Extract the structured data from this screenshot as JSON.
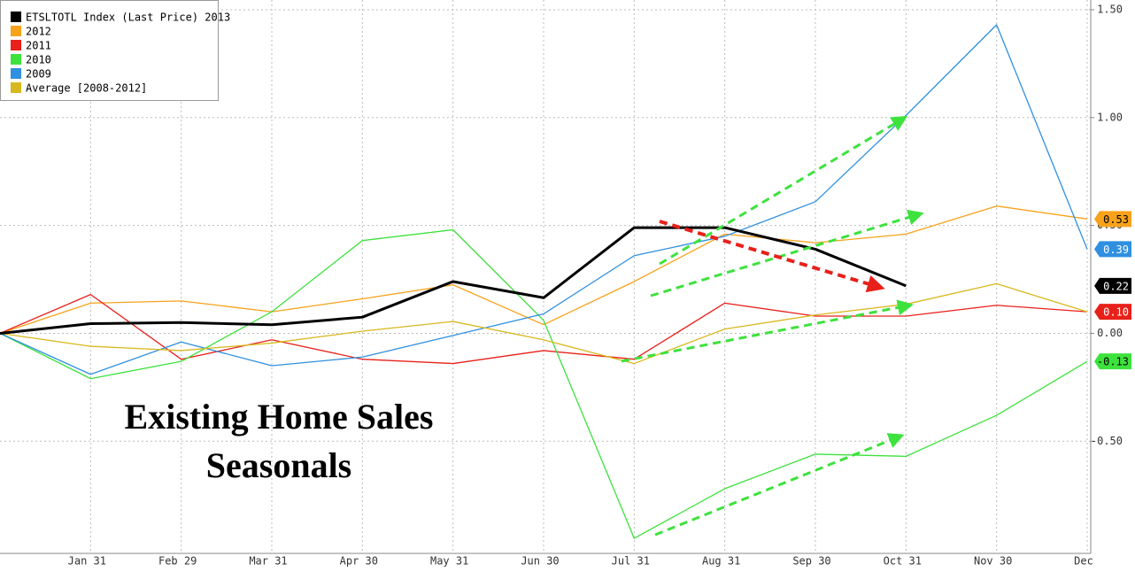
{
  "chart_data": {
    "type": "line",
    "categories": [
      null,
      "Jan 31",
      "Feb 29",
      "Mar 31",
      "Apr 30",
      "May 31",
      "Jun 30",
      "Jul 31",
      "Aug 31",
      "Sep 30",
      "Oct 31",
      "Nov 30",
      "Dec"
    ],
    "series": [
      {
        "name": "ETSLTOTL Index (Last Price) 2013",
        "color": "#000000",
        "width": 3,
        "values": [
          0,
          0.045,
          0.05,
          0.04,
          0.075,
          0.24,
          0.165,
          0.49,
          0.49,
          0.39,
          0.22,
          null,
          null
        ],
        "end_label": "0.22"
      },
      {
        "name": "2012",
        "color": "#f7a21b",
        "width": 1.3,
        "values": [
          0,
          0.14,
          0.15,
          0.1,
          0.16,
          0.225,
          0.04,
          0.24,
          0.46,
          0.42,
          0.46,
          0.59,
          0.53
        ],
        "end_label": "0.53"
      },
      {
        "name": "2011",
        "color": "#e8201a",
        "width": 1.3,
        "values": [
          0,
          0.18,
          -0.12,
          -0.03,
          -0.12,
          -0.14,
          -0.08,
          -0.12,
          0.14,
          0.08,
          0.08,
          0.13,
          0.1
        ],
        "end_label": "0.10"
      },
      {
        "name": "2010",
        "color": "#3de23d",
        "width": 1.3,
        "values": [
          0,
          -0.21,
          -0.13,
          0.1,
          0.43,
          0.48,
          0.06,
          -0.95,
          -0.72,
          -0.56,
          -0.57,
          -0.38,
          -0.13
        ],
        "end_label": "-0.13"
      },
      {
        "name": "2009",
        "color": "#2f8fe0",
        "width": 1.3,
        "values": [
          0,
          -0.19,
          -0.04,
          -0.15,
          -0.11,
          -0.01,
          0.09,
          0.36,
          0.45,
          0.61,
          1.01,
          1.43,
          0.39
        ],
        "end_label": "0.39"
      },
      {
        "name": "Average [2008-2012]",
        "color": "#d8b81e",
        "width": 1.3,
        "values": [
          0,
          -0.06,
          -0.08,
          -0.045,
          0.01,
          0.055,
          -0.03,
          -0.14,
          0.02,
          0.085,
          0.135,
          0.23,
          0.1
        ]
      }
    ],
    "ylim": [
      -1.02,
      1.545
    ],
    "yticks": [
      {
        "value": -0.5,
        "label": "-0.50"
      },
      {
        "value": 0,
        "label": "0.00"
      },
      {
        "value": 0.5,
        "label": "0.50"
      },
      {
        "value": 1,
        "label": "1.00"
      },
      {
        "value": 1.5,
        "label": "1.50"
      }
    ],
    "grid": true,
    "legend": "top-left",
    "annotations": [
      "Existing Home Sales",
      "Seasonals"
    ]
  }
}
